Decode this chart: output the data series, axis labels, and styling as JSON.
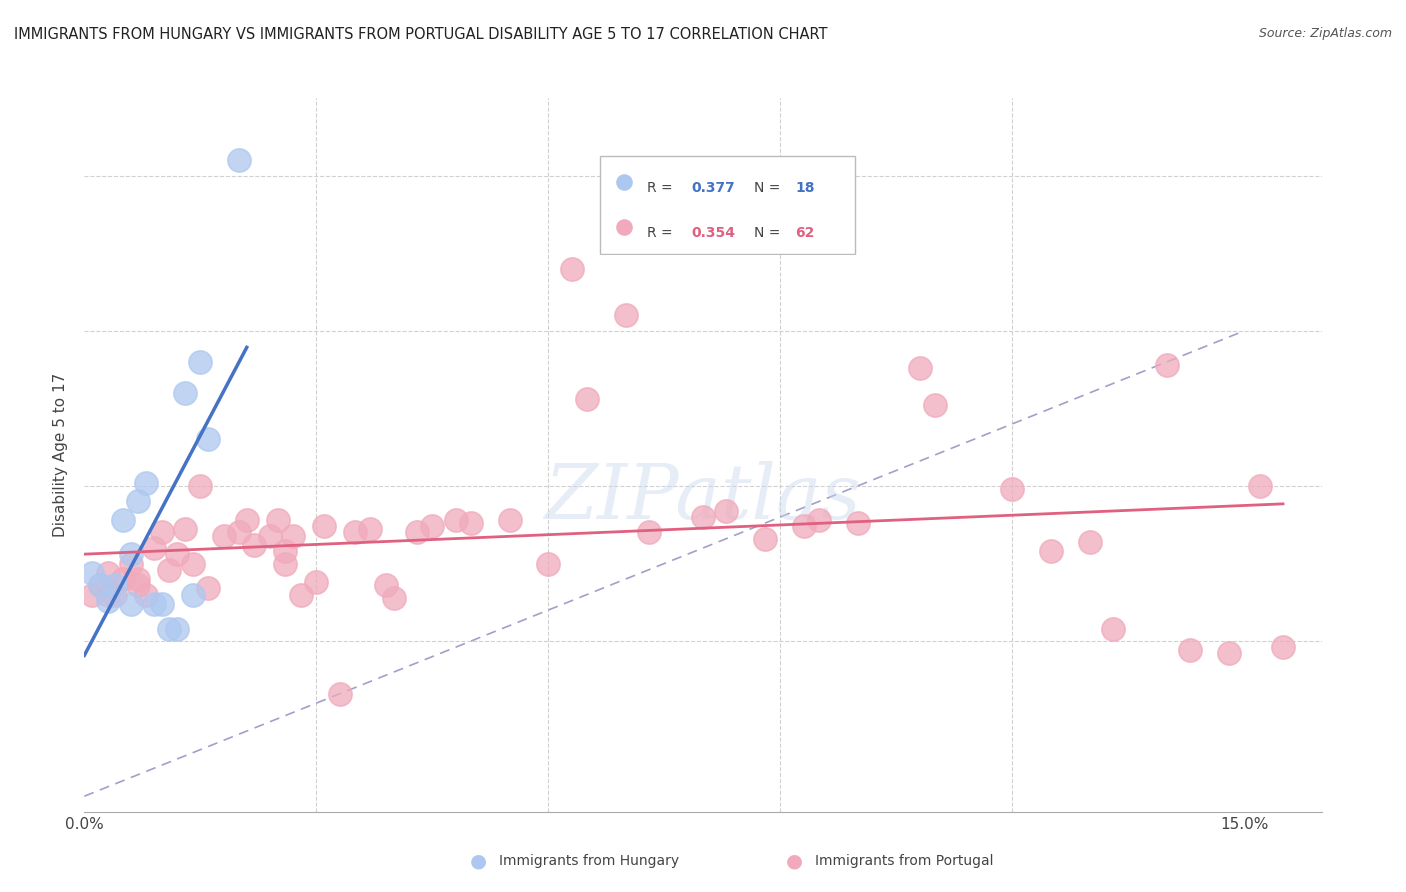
{
  "title": "IMMIGRANTS FROM HUNGARY VS IMMIGRANTS FROM PORTUGAL DISABILITY AGE 5 TO 17 CORRELATION CHART",
  "source": "Source: ZipAtlas.com",
  "ylabel": "Disability Age 5 to 17",
  "xlim": [
    0.0,
    0.16
  ],
  "ylim": [
    -0.005,
    0.225
  ],
  "hungary_color": "#adc8f0",
  "portugal_color": "#f0aabb",
  "hungary_edge_color": "#adc8f0",
  "portugal_edge_color": "#f0aabb",
  "hungary_line_color": "#4472c4",
  "portugal_line_color": "#e06080",
  "ref_line_color": "#8888bb",
  "watermark": "ZIPatlas",
  "hungary_x": [
    0.001,
    0.002,
    0.003,
    0.004,
    0.005,
    0.006,
    0.006,
    0.007,
    0.008,
    0.009,
    0.01,
    0.011,
    0.012,
    0.013,
    0.014,
    0.015,
    0.016,
    0.02
  ],
  "hungary_y": [
    0.072,
    0.068,
    0.063,
    0.068,
    0.089,
    0.062,
    0.078,
    0.095,
    0.101,
    0.062,
    0.062,
    0.054,
    0.054,
    0.13,
    0.065,
    0.14,
    0.115,
    0.205
  ],
  "portugal_x": [
    0.001,
    0.002,
    0.003,
    0.003,
    0.004,
    0.005,
    0.006,
    0.007,
    0.007,
    0.008,
    0.009,
    0.01,
    0.011,
    0.012,
    0.013,
    0.014,
    0.015,
    0.016,
    0.018,
    0.02,
    0.021,
    0.022,
    0.024,
    0.025,
    0.026,
    0.026,
    0.027,
    0.028,
    0.03,
    0.031,
    0.033,
    0.035,
    0.037,
    0.039,
    0.04,
    0.043,
    0.045,
    0.048,
    0.05,
    0.055,
    0.06,
    0.063,
    0.065,
    0.07,
    0.073,
    0.08,
    0.083,
    0.088,
    0.093,
    0.095,
    0.1,
    0.108,
    0.11,
    0.12,
    0.125,
    0.13,
    0.133,
    0.14,
    0.143,
    0.148,
    0.152,
    0.155
  ],
  "portugal_y": [
    0.065,
    0.068,
    0.072,
    0.065,
    0.065,
    0.07,
    0.075,
    0.068,
    0.07,
    0.065,
    0.08,
    0.085,
    0.073,
    0.078,
    0.086,
    0.075,
    0.1,
    0.067,
    0.084,
    0.085,
    0.089,
    0.081,
    0.084,
    0.089,
    0.075,
    0.079,
    0.084,
    0.065,
    0.069,
    0.087,
    0.033,
    0.085,
    0.086,
    0.068,
    0.064,
    0.085,
    0.087,
    0.089,
    0.088,
    0.089,
    0.075,
    0.17,
    0.128,
    0.155,
    0.085,
    0.09,
    0.092,
    0.083,
    0.087,
    0.089,
    0.088,
    0.138,
    0.126,
    0.099,
    0.079,
    0.082,
    0.054,
    0.139,
    0.047,
    0.046,
    0.1,
    0.048
  ]
}
